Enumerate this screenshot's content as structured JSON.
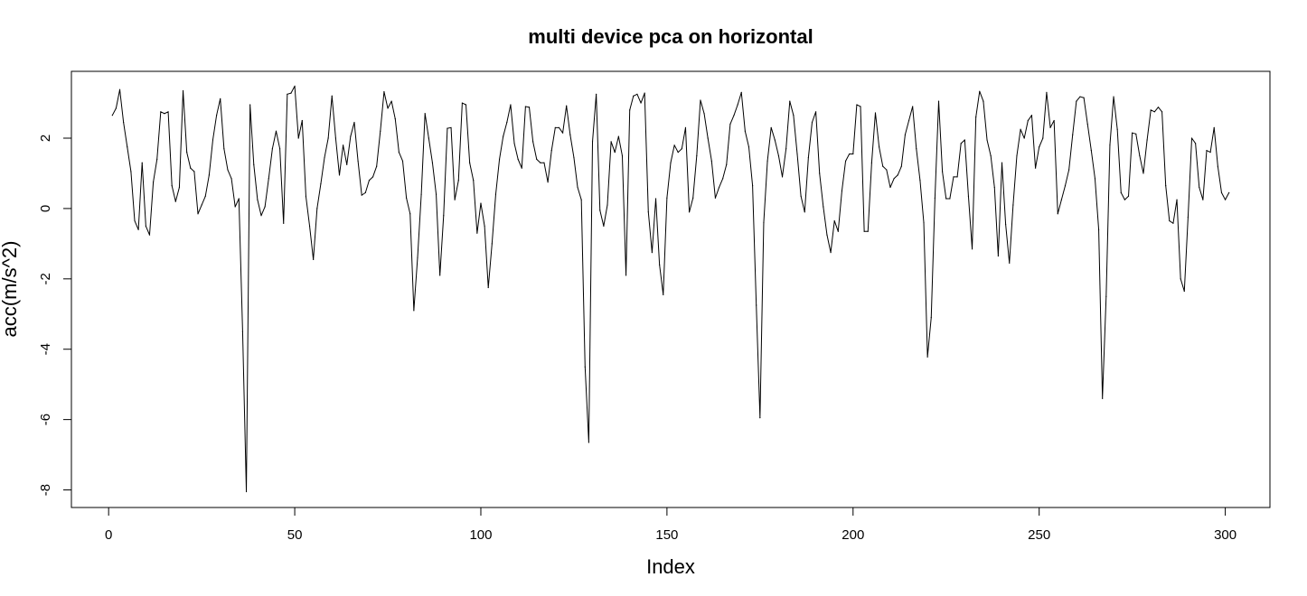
{
  "chart_data": {
    "type": "line",
    "title": "multi device pca on horizontal",
    "xlabel": "Index",
    "ylabel": "acc(m/s^2)",
    "xlim": [
      -10,
      312
    ],
    "ylim": [
      -8.5,
      3.9
    ],
    "x_ticks": [
      0,
      50,
      100,
      150,
      200,
      250,
      300
    ],
    "y_ticks": [
      -8,
      -6,
      -4,
      -2,
      0,
      2
    ],
    "grid": false,
    "legend": "none",
    "line_color": "#000000",
    "series": [
      {
        "x_start": 1,
        "values": [
          2.65,
          2.85,
          3.38,
          2.45,
          1.75,
          1.05,
          -0.35,
          -0.6,
          1.3,
          -0.5,
          -0.75,
          0.75,
          1.4,
          2.75,
          2.7,
          2.75,
          0.65,
          0.2,
          0.6,
          3.35,
          1.6,
          1.15,
          1.05,
          -0.15,
          0.1,
          0.35,
          0.95,
          1.95,
          2.65,
          3.12,
          1.7,
          1.1,
          0.85,
          0.05,
          0.28,
          -3.5,
          -8.05,
          2.95,
          1.25,
          0.25,
          -0.2,
          0.05,
          0.85,
          1.7,
          2.2,
          1.7,
          -0.42,
          3.25,
          3.28,
          3.48,
          2.0,
          2.5,
          0.35,
          -0.5,
          -1.45,
          0.0,
          0.7,
          1.45,
          2.0,
          3.2,
          2.0,
          0.95,
          1.8,
          1.25,
          2.05,
          2.45,
          1.35,
          0.38,
          0.45,
          0.8,
          0.9,
          1.2,
          2.2,
          3.32,
          2.85,
          3.05,
          2.55,
          1.6,
          1.35,
          0.3,
          -0.15,
          -2.9,
          -1.4,
          0.4,
          2.7,
          2.0,
          1.3,
          0.4,
          -1.9,
          -0.2,
          2.28,
          2.3,
          0.25,
          0.8,
          3.0,
          2.95,
          1.3,
          0.8,
          -0.7,
          0.15,
          -0.5,
          -2.25,
          -1.0,
          0.4,
          1.4,
          2.05,
          2.45,
          2.95,
          1.85,
          1.4,
          1.15,
          2.9,
          2.88,
          1.9,
          1.4,
          1.3,
          1.3,
          0.75,
          1.65,
          2.3,
          2.3,
          2.15,
          2.92,
          2.1,
          1.45,
          0.6,
          0.25,
          -4.5,
          -6.65,
          1.9,
          3.25,
          -0.05,
          -0.5,
          0.1,
          1.9,
          1.6,
          2.05,
          1.5,
          -1.9,
          2.8,
          3.2,
          3.25,
          3.0,
          3.28,
          -0.1,
          -1.25,
          0.28,
          -1.6,
          -2.45,
          0.3,
          1.3,
          1.8,
          1.6,
          1.7,
          2.3,
          -0.1,
          0.3,
          1.5,
          3.08,
          2.7,
          2.0,
          1.35,
          0.3,
          0.6,
          0.85,
          1.25,
          2.4,
          2.65,
          2.95,
          3.3,
          2.2,
          1.75,
          0.65,
          -2.75,
          -5.95,
          -0.4,
          1.35,
          2.3,
          1.95,
          1.5,
          0.9,
          1.7,
          3.05,
          2.65,
          1.55,
          0.35,
          -0.1,
          1.45,
          2.45,
          2.75,
          1.0,
          0.05,
          -0.75,
          -1.25,
          -0.35,
          -0.65,
          0.5,
          1.35,
          1.55,
          1.55,
          2.95,
          2.9,
          -0.65,
          -0.65,
          1.3,
          2.72,
          1.75,
          1.2,
          1.1,
          0.6,
          0.85,
          0.95,
          1.2,
          2.1,
          2.5,
          2.9,
          1.7,
          0.8,
          -0.4,
          -4.22,
          -3.1,
          0.3,
          3.05,
          1.05,
          0.28,
          0.28,
          0.9,
          0.9,
          1.85,
          1.95,
          0.35,
          -1.15,
          2.6,
          3.33,
          3.05,
          1.95,
          1.5,
          0.6,
          -1.35,
          1.3,
          -0.45,
          -1.55,
          0.1,
          1.5,
          2.25,
          2.0,
          2.5,
          2.65,
          1.15,
          1.75,
          2.0,
          3.3,
          2.3,
          2.5,
          -0.15,
          0.25,
          0.65,
          1.1,
          2.1,
          3.05,
          3.18,
          3.15,
          2.4,
          1.65,
          0.85,
          -0.6,
          -5.4,
          -2.5,
          1.8,
          3.18,
          2.25,
          0.45,
          0.25,
          0.35,
          2.15,
          2.12,
          1.5,
          1.0,
          1.95,
          2.8,
          2.75,
          2.88,
          2.75,
          0.65,
          -0.35,
          -0.42,
          0.25,
          -2.0,
          -2.35,
          -0.25,
          2.0,
          1.85,
          0.6,
          0.25,
          1.65,
          1.6,
          2.3,
          1.2,
          0.45,
          0.25,
          0.45
        ]
      }
    ]
  }
}
